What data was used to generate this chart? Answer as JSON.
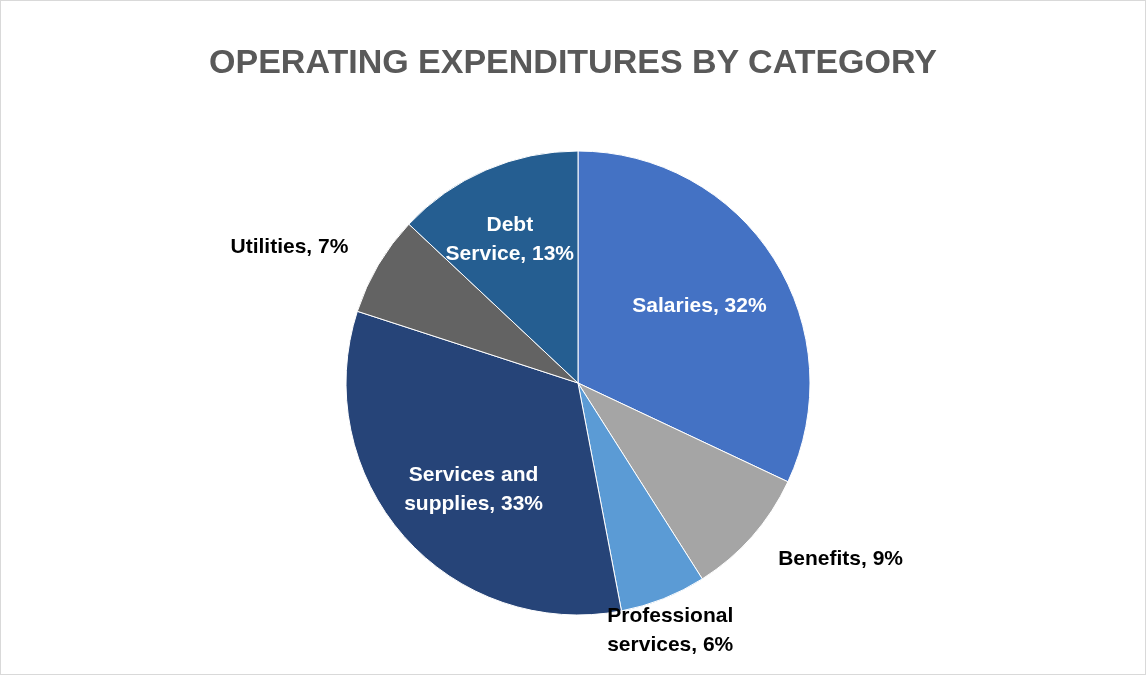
{
  "chart_data": {
    "type": "pie",
    "title": "OPERATING EXPENDITURES BY CATEGORY",
    "categories": [
      "Salaries",
      "Benefits",
      "Professional services",
      "Services and supplies",
      "Utilities",
      "Debt Service"
    ],
    "values": [
      32,
      9,
      6,
      33,
      7,
      13
    ],
    "colors": [
      "#4472c4",
      "#a5a5a5",
      "#5b9bd5",
      "#264478",
      "#636363",
      "#255e91"
    ],
    "value_labels": [
      "32%",
      "9%",
      "6%",
      "33%",
      "7%",
      "13%"
    ],
    "legend": false
  }
}
